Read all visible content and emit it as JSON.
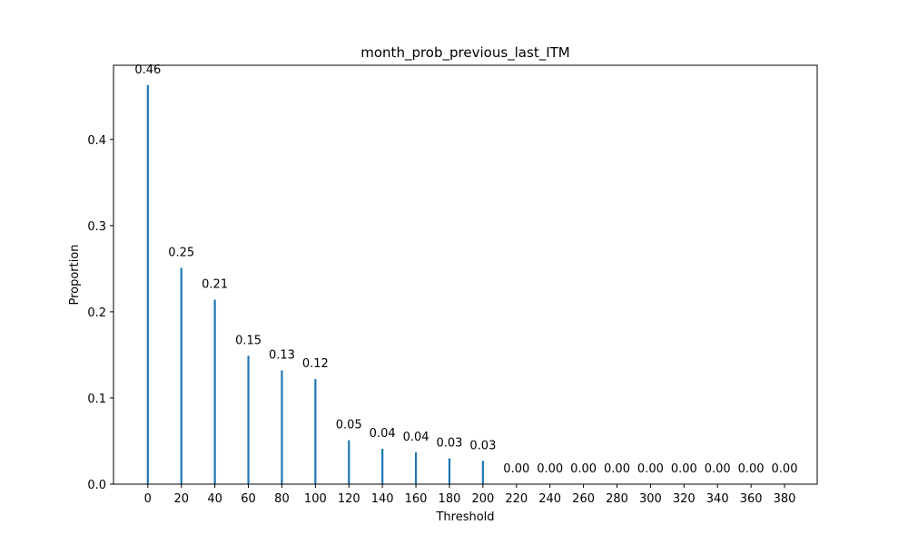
{
  "chart_data": {
    "type": "bar",
    "title": "month_prob_previous_last_ITM",
    "xlabel": "Threshold",
    "ylabel": "Proportion",
    "categories": [
      0,
      20,
      40,
      60,
      80,
      100,
      120,
      140,
      160,
      180,
      200,
      220,
      240,
      260,
      280,
      300,
      320,
      340,
      360,
      380
    ],
    "values": [
      0.463,
      0.251,
      0.214,
      0.149,
      0.132,
      0.122,
      0.051,
      0.041,
      0.037,
      0.03,
      0.027,
      0.0,
      0.0,
      0.0,
      0.0,
      0.0,
      0.0,
      0.0,
      0.0,
      0.0
    ],
    "data_labels": [
      "0.46",
      "0.25",
      "0.21",
      "0.15",
      "0.13",
      "0.12",
      "0.05",
      "0.04",
      "0.04",
      "0.03",
      "0.03",
      "0.00",
      "0.00",
      "0.00",
      "0.00",
      "0.00",
      "0.00",
      "0.00",
      "0.00",
      "0.00"
    ],
    "x_ticks": [
      "0",
      "20",
      "40",
      "60",
      "80",
      "100",
      "120",
      "140",
      "160",
      "180",
      "200",
      "220",
      "240",
      "260",
      "280",
      "300",
      "320",
      "340",
      "360",
      "380"
    ],
    "y_ticks": [
      "0.0",
      "0.1",
      "0.2",
      "0.3",
      "0.4"
    ],
    "xlim": [
      -20.5,
      399.5
    ],
    "ylim": [
      0,
      0.486
    ],
    "bar_color": "#1f77b4",
    "grid": false,
    "legend": "none"
  }
}
